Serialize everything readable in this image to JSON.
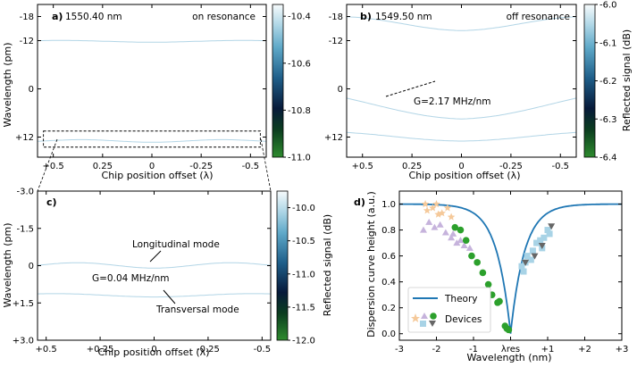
{
  "chart_data": [
    {
      "id": "a",
      "type": "heatmap",
      "panel_label": "a)",
      "wavelength_label": "1550.40 nm",
      "state_label": "on resonance",
      "xlabel": "Chip position offset (λ)",
      "ylabel": "Wavelength (pm)",
      "x_ticks": [
        "+0.5",
        "0.25",
        "0",
        "-0.25",
        "-0.5"
      ],
      "x_tick_values": [
        0.5,
        0.25,
        0,
        -0.25,
        -0.5
      ],
      "y_ticks": [
        "-18",
        "-12",
        "0",
        "+12"
      ],
      "y_tick_values": [
        -18,
        -12,
        0,
        12
      ],
      "xlim": [
        0.58,
        -0.58
      ],
      "ylim": [
        -21,
        17
      ],
      "colorbar": {
        "ticks": [
          "-10.4",
          "-10.6",
          "-10.8",
          "-11.0"
        ],
        "tick_values": [
          -10.4,
          -10.6,
          -10.8,
          -11.0
        ],
        "range": [
          -11.0,
          -10.35
        ]
      },
      "traces": [
        {
          "y0": -11.8,
          "amp": 0.2,
          "period": 0.9
        },
        {
          "y0": 13,
          "amp": 0.3,
          "period": 0.7
        }
      ],
      "zoom_box": {
        "x": [
          0.55,
          -0.55
        ],
        "y": [
          10.5,
          14.5
        ]
      }
    },
    {
      "id": "b",
      "type": "heatmap",
      "panel_label": "b)",
      "wavelength_label": "1549.50 nm",
      "state_label": "off resonance",
      "xlabel": "Chip position offset (λ)",
      "ylabel": "",
      "x_ticks": [
        "+0.5",
        "0.25",
        "0",
        "-0.25",
        "-0.5"
      ],
      "x_tick_values": [
        0.5,
        0.25,
        0,
        -0.25,
        -0.5
      ],
      "y_ticks": [
        "-18",
        "-12",
        "0",
        "+12"
      ],
      "y_tick_values": [
        -18,
        -12,
        0,
        12
      ],
      "xlim": [
        0.58,
        -0.58
      ],
      "ylim": [
        -21,
        17
      ],
      "colorbar": {
        "label": "Reflected signal (dB)",
        "ticks": [
          "-6.0",
          "-6.1",
          "-6.2",
          "-6.3",
          "-6.4"
        ],
        "tick_values": [
          -6.0,
          -6.1,
          -6.2,
          -6.3,
          -6.4
        ],
        "range": [
          -6.4,
          -6.0
        ]
      },
      "slope_label": "G=2.17 MHz/nm",
      "traces": [
        {
          "y0": -16,
          "amp": 1.5,
          "period": 1.2
        },
        {
          "y0": 4.5,
          "amp": 3,
          "period": 1.8
        },
        {
          "y0": 12,
          "amp": 1,
          "period": 1.4
        }
      ]
    },
    {
      "id": "c",
      "type": "heatmap",
      "panel_label": "c)",
      "xlabel": "Chip position offset (λ)",
      "ylabel": "Wavelength (pm)",
      "x_ticks": [
        "+0.5",
        "+0.25",
        "0",
        "-0.25",
        "-0.5"
      ],
      "x_tick_values": [
        0.5,
        0.25,
        0,
        -0.25,
        -0.5
      ],
      "y_ticks": [
        "-3.0",
        "-1.5",
        "0",
        "+1.5",
        "+3.0"
      ],
      "y_tick_values": [
        -3.0,
        -1.5,
        0,
        1.5,
        3.0
      ],
      "xlim": [
        0.54,
        -0.54
      ],
      "ylim": [
        -3.0,
        3.0
      ],
      "colorbar": {
        "label": "Reflected signal (dB)",
        "ticks": [
          "-10.0",
          "-10.5",
          "-11.0",
          "-11.5",
          "-12.0"
        ],
        "tick_values": [
          -10.0,
          -10.5,
          -11.0,
          -11.5,
          -12.0
        ],
        "range": [
          -12.0,
          -9.75
        ]
      },
      "slope_label": "G=0.04 MHz/nm",
      "longitudinal_label": "Longitudinal mode",
      "transversal_label": "Transversal mode",
      "traces": [
        {
          "y0": 0.0,
          "amp": 0.1,
          "period": 0.7
        },
        {
          "y0": 1.2,
          "amp": 0.06,
          "period": 0.9
        }
      ]
    },
    {
      "id": "d",
      "type": "scatter",
      "panel_label": "d)",
      "xlabel": "Wavelength (nm)",
      "ylabel": "Dispersion curve height (a.u.)",
      "x_ticks": [
        "-3",
        "-2",
        "-1",
        "λres",
        "+1",
        "+2",
        "+3"
      ],
      "x_tick_values": [
        -3,
        -2,
        -1,
        0,
        1,
        2,
        3
      ],
      "y_ticks": [
        "0.0",
        "0.2",
        "0.4",
        "0.6",
        "0.8",
        "1.0"
      ],
      "y_tick_values": [
        0,
        0.2,
        0.4,
        0.6,
        0.8,
        1.0
      ],
      "xlim": [
        -3,
        3
      ],
      "ylim": [
        -0.05,
        1.1
      ],
      "theory": {
        "name": "Theory",
        "color": "#1f77b4",
        "center": 0.0,
        "width": 0.6
      },
      "devices_label": "Devices",
      "series": [
        {
          "marker": "star",
          "color": "#f5c99a",
          "points": [
            [
              -2.3,
              1.0
            ],
            [
              -2.1,
              0.97
            ],
            [
              -2.0,
              1.0
            ],
            [
              -1.85,
              0.93
            ],
            [
              -1.7,
              0.97
            ],
            [
              -1.6,
              0.9
            ],
            [
              -2.25,
              0.95
            ],
            [
              -1.95,
              0.92
            ]
          ]
        },
        {
          "marker": "triangle",
          "color": "#c6b3dc",
          "points": [
            [
              -2.2,
              0.86
            ],
            [
              -2.05,
              0.82
            ],
            [
              -1.9,
              0.84
            ],
            [
              -1.75,
              0.78
            ],
            [
              -1.6,
              0.74
            ],
            [
              -1.45,
              0.7
            ],
            [
              -1.35,
              0.72
            ],
            [
              -1.25,
              0.68
            ],
            [
              -1.1,
              0.66
            ],
            [
              -2.35,
              0.8
            ],
            [
              -1.55,
              0.77
            ]
          ]
        },
        {
          "marker": "circle",
          "color": "#2ca02c",
          "points": [
            [
              -1.5,
              0.82
            ],
            [
              -1.35,
              0.8
            ],
            [
              -1.2,
              0.72
            ],
            [
              -1.05,
              0.6
            ],
            [
              -0.9,
              0.55
            ],
            [
              -0.75,
              0.47
            ],
            [
              -0.6,
              0.38
            ],
            [
              -0.5,
              0.3
            ],
            [
              -0.35,
              0.24
            ],
            [
              -0.3,
              0.25
            ],
            [
              -0.15,
              0.06
            ],
            [
              -0.1,
              0.04
            ],
            [
              -0.05,
              0.03
            ]
          ]
        },
        {
          "marker": "square",
          "color": "#a8d3e6",
          "points": [
            [
              0.3,
              0.52
            ],
            [
              0.35,
              0.48
            ],
            [
              0.45,
              0.6
            ],
            [
              0.55,
              0.57
            ],
            [
              0.6,
              0.64
            ],
            [
              0.7,
              0.7
            ],
            [
              0.8,
              0.72
            ],
            [
              0.9,
              0.74
            ],
            [
              1.0,
              0.8
            ],
            [
              1.05,
              0.77
            ],
            [
              0.4,
              0.55
            ],
            [
              0.85,
              0.66
            ]
          ]
        },
        {
          "marker": "triangle-down",
          "color": "#666666",
          "points": [
            [
              0.4,
              0.55
            ],
            [
              0.65,
              0.6
            ],
            [
              0.85,
              0.68
            ],
            [
              1.1,
              0.83
            ]
          ]
        }
      ]
    }
  ]
}
